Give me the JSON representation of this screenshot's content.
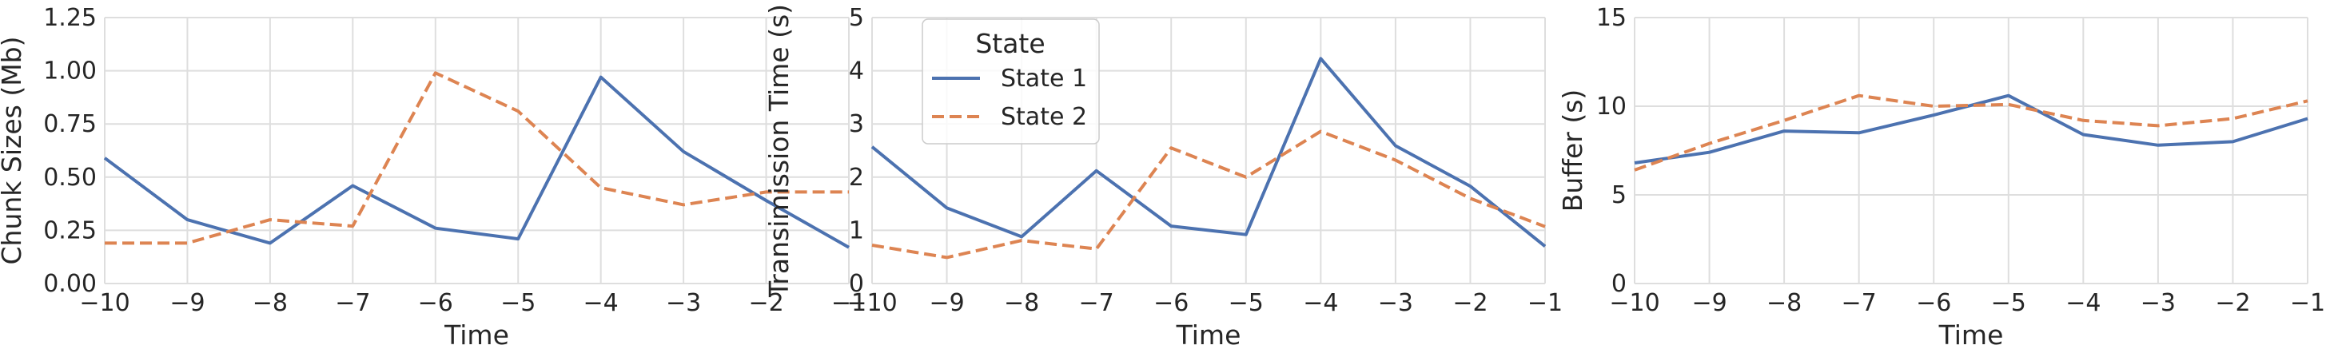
{
  "colors": {
    "state1": "#4c72b0",
    "state2": "#dd8452",
    "grid": "#dedede",
    "text": "#262626"
  },
  "legend": {
    "title": "State",
    "placement": "upper center of middle panel",
    "entries": [
      {
        "label": "State 1",
        "style": "solid",
        "color": "#4c72b0"
      },
      {
        "label": "State 2",
        "style": "dashed",
        "color": "#dd8452"
      }
    ]
  },
  "chart_data": [
    {
      "type": "line",
      "xlabel": "Time",
      "ylabel": "Chunk Sizes (Mb)",
      "x": [
        -10,
        -9,
        -8,
        -7,
        -6,
        -5,
        -4,
        -3,
        -2,
        -1
      ],
      "xlim": [
        -10,
        -1
      ],
      "ylim": [
        0,
        1.25
      ],
      "xticks": [
        "−10",
        "−9",
        "−8",
        "−7",
        "−6",
        "−5",
        "−4",
        "−3",
        "−2",
        "−1"
      ],
      "yticks": [
        "0.00",
        "0.25",
        "0.50",
        "0.75",
        "1.00",
        "1.25"
      ],
      "ytick_values": [
        0,
        0.25,
        0.5,
        0.75,
        1.0,
        1.25
      ],
      "grid": true,
      "series": [
        {
          "name": "State 1",
          "style": "solid",
          "values": [
            0.59,
            0.3,
            0.19,
            0.46,
            0.26,
            0.21,
            0.97,
            0.62,
            0.39,
            0.17
          ]
        },
        {
          "name": "State 2",
          "style": "dashed",
          "values": [
            0.19,
            0.19,
            0.3,
            0.27,
            0.99,
            0.81,
            0.45,
            0.37,
            0.43,
            0.43
          ]
        }
      ]
    },
    {
      "type": "line",
      "xlabel": "Time",
      "ylabel": "Transimission Time (s)",
      "x": [
        -10,
        -9,
        -8,
        -7,
        -6,
        -5,
        -4,
        -3,
        -2,
        -1
      ],
      "xlim": [
        -10,
        -1
      ],
      "ylim": [
        0,
        5
      ],
      "xticks": [
        "−10",
        "−9",
        "−8",
        "−7",
        "−6",
        "−5",
        "−4",
        "−3",
        "−2",
        "−1"
      ],
      "yticks": [
        "0",
        "1",
        "2",
        "3",
        "4",
        "5"
      ],
      "ytick_values": [
        0,
        1,
        2,
        3,
        4,
        5
      ],
      "grid": true,
      "series": [
        {
          "name": "State 1",
          "style": "solid",
          "values": [
            2.57,
            1.42,
            0.88,
            2.12,
            1.08,
            0.92,
            4.23,
            2.59,
            1.83,
            0.7
          ]
        },
        {
          "name": "State 2",
          "style": "dashed",
          "values": [
            0.72,
            0.49,
            0.81,
            0.65,
            2.55,
            2.0,
            2.86,
            2.32,
            1.6,
            1.07
          ]
        }
      ]
    },
    {
      "type": "line",
      "xlabel": "Time",
      "ylabel": "Buffer (s)",
      "x": [
        -10,
        -9,
        -8,
        -7,
        -6,
        -5,
        -4,
        -3,
        -2,
        -1
      ],
      "xlim": [
        -10,
        -1
      ],
      "ylim": [
        0,
        15
      ],
      "xticks": [
        "−10",
        "−9",
        "−8",
        "−7",
        "−6",
        "−5",
        "−4",
        "−3",
        "−2",
        "−1"
      ],
      "yticks": [
        "0",
        "5",
        "10",
        "15"
      ],
      "ytick_values": [
        0,
        5,
        10,
        15
      ],
      "grid": true,
      "series": [
        {
          "name": "State 1",
          "style": "solid",
          "values": [
            6.8,
            7.4,
            8.6,
            8.5,
            9.5,
            10.6,
            8.4,
            7.8,
            8.0,
            9.3
          ]
        },
        {
          "name": "State 2",
          "style": "dashed",
          "values": [
            6.4,
            7.9,
            9.2,
            10.6,
            10.0,
            10.1,
            9.2,
            8.9,
            9.3,
            10.3
          ]
        }
      ]
    }
  ]
}
